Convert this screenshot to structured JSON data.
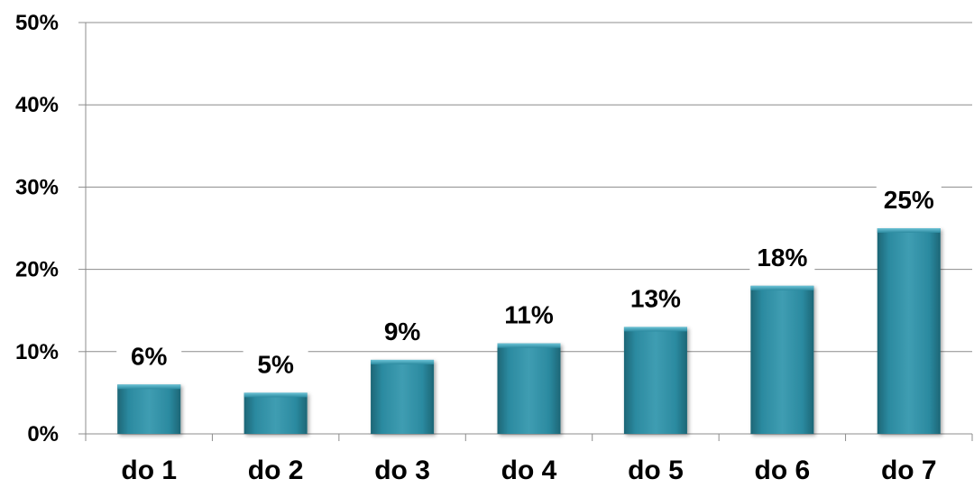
{
  "chart_data": {
    "type": "bar",
    "title": "",
    "xlabel": "",
    "ylabel": "",
    "categories": [
      "do 1",
      "do 2",
      "do 3",
      "do 4",
      "do 5",
      "do 6",
      "do 7"
    ],
    "values": [
      6,
      5,
      9,
      11,
      13,
      18,
      25
    ],
    "value_labels": [
      "6%",
      "5%",
      "9%",
      "11%",
      "13%",
      "18%",
      "25%"
    ],
    "ylim": [
      0,
      50
    ],
    "yticks": [
      0,
      10,
      20,
      30,
      40,
      50
    ],
    "ytick_labels": [
      "0%",
      "10%",
      "20%",
      "30%",
      "40%",
      "50%"
    ],
    "grid": true,
    "legend": "none",
    "bar_color": "#2b8aa0",
    "bar_color_light": "#6cc3d6",
    "bar_color_dark": "#1d6676"
  }
}
